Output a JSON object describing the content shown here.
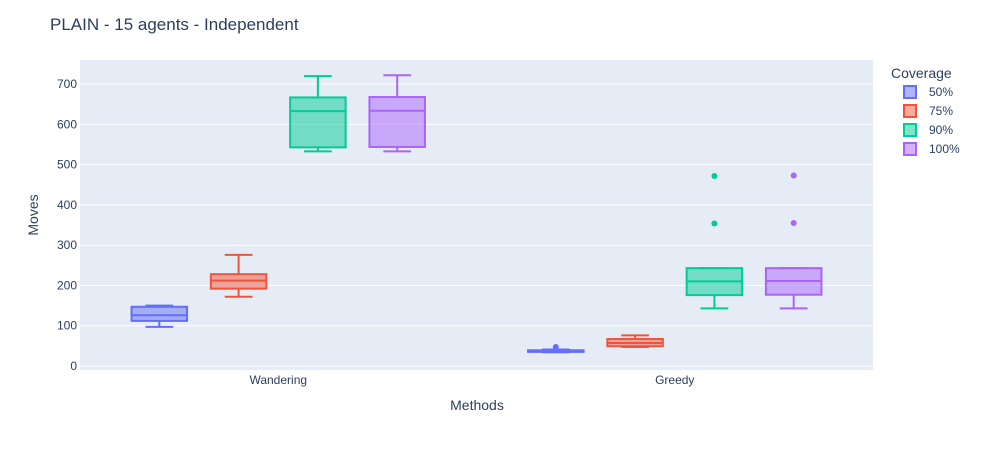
{
  "chart_data": {
    "type": "box",
    "title": "PLAIN - 15 agents - Independent",
    "xlabel": "Methods",
    "ylabel": "Moves",
    "categories": [
      "Wandering",
      "Greedy"
    ],
    "ylim": [
      -10,
      760
    ],
    "yticks": [
      "0",
      "100",
      "200",
      "300",
      "400",
      "500",
      "600",
      "700"
    ],
    "grid": true,
    "legend_title": "Coverage",
    "legend_position": "right",
    "series": [
      {
        "name": "50%",
        "color": "#636efa",
        "fill": "rgba(99,110,250,0.5)",
        "boxes": [
          {
            "category": "Wandering",
            "min": 97,
            "q1": 112,
            "median": 126,
            "q3": 147,
            "max": 150,
            "outliers": []
          },
          {
            "category": "Greedy",
            "min": 34,
            "q1": 35,
            "median": 37,
            "q3": 39,
            "max": 41,
            "outliers": [
              47
            ]
          }
        ]
      },
      {
        "name": "75%",
        "color": "#ef553b",
        "fill": "rgba(239,85,59,0.5)",
        "boxes": [
          {
            "category": "Wandering",
            "min": 172,
            "q1": 192,
            "median": 212,
            "q3": 228,
            "max": 276,
            "outliers": []
          },
          {
            "category": "Greedy",
            "min": 47,
            "q1": 49,
            "median": 57,
            "q3": 67,
            "max": 76,
            "outliers": []
          }
        ]
      },
      {
        "name": "90%",
        "color": "#00cc96",
        "fill": "rgba(0,204,150,0.5)",
        "boxes": [
          {
            "category": "Wandering",
            "min": 533,
            "q1": 543,
            "median": 633,
            "q3": 667,
            "max": 720,
            "outliers": []
          },
          {
            "category": "Greedy",
            "min": 143,
            "q1": 176,
            "median": 210,
            "q3": 243,
            "max": 243,
            "outliers": [
              354,
              472
            ]
          }
        ]
      },
      {
        "name": "100%",
        "color": "#ab63fa",
        "fill": "rgba(171,99,250,0.5)",
        "boxes": [
          {
            "category": "Wandering",
            "min": 533,
            "q1": 544,
            "median": 634,
            "q3": 668,
            "max": 722,
            "outliers": []
          },
          {
            "category": "Greedy",
            "min": 143,
            "q1": 177,
            "median": 211,
            "q3": 243,
            "max": 243,
            "outliers": [
              355,
              473
            ]
          }
        ]
      }
    ]
  }
}
